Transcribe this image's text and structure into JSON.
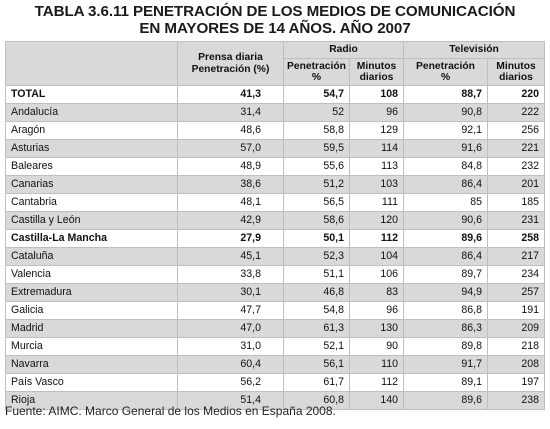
{
  "title": {
    "line1": "TABLA 3.6.11 PENETRACIÓN DE LOS MEDIOS DE COMUNICACIÓN",
    "line2": "EN MAYORES DE 14 AÑOS. AÑO 2007"
  },
  "headers": {
    "prensa": "Prensa diaria",
    "prensa_sub": "Penetración (%)",
    "radio": "Radio",
    "television": "Televisión",
    "penetracion": "Penetración",
    "pct": "%",
    "minutos": "Minutos",
    "diarios": "diarios"
  },
  "rows": [
    {
      "region": "TOTAL",
      "prensa": "41,3",
      "radio_pen": "54,7",
      "radio_min": "108",
      "tv_pen": "88,7",
      "tv_min": "220",
      "bold": true
    },
    {
      "region": "Andalucía",
      "prensa": "31,4",
      "radio_pen": "52",
      "radio_min": "96",
      "tv_pen": "90,8",
      "tv_min": "222",
      "bold": false
    },
    {
      "region": "Aragón",
      "prensa": "48,6",
      "radio_pen": "58,8",
      "radio_min": "129",
      "tv_pen": "92,1",
      "tv_min": "256",
      "bold": false
    },
    {
      "region": "Asturias",
      "prensa": "57,0",
      "radio_pen": "59,5",
      "radio_min": "114",
      "tv_pen": "91,6",
      "tv_min": "221",
      "bold": false
    },
    {
      "region": "Baleares",
      "prensa": "48,9",
      "radio_pen": "55,6",
      "radio_min": "113",
      "tv_pen": "84,8",
      "tv_min": "232",
      "bold": false
    },
    {
      "region": "Canarias",
      "prensa": "38,6",
      "radio_pen": "51,2",
      "radio_min": "103",
      "tv_pen": "86,4",
      "tv_min": "201",
      "bold": false
    },
    {
      "region": "Cantabria",
      "prensa": "48,1",
      "radio_pen": "56,5",
      "radio_min": "111",
      "tv_pen": "85",
      "tv_min": "185",
      "bold": false
    },
    {
      "region": "Castilla y León",
      "prensa": "42,9",
      "radio_pen": "58,6",
      "radio_min": "120",
      "tv_pen": "90,6",
      "tv_min": "231",
      "bold": false
    },
    {
      "region": "Castilla-La Mancha",
      "prensa": "27,9",
      "radio_pen": "50,1",
      "radio_min": "112",
      "tv_pen": "89,6",
      "tv_min": "258",
      "bold": true
    },
    {
      "region": "Cataluña",
      "prensa": "45,1",
      "radio_pen": "52,3",
      "radio_min": "104",
      "tv_pen": "86,4",
      "tv_min": "217",
      "bold": false
    },
    {
      "region": "Valencia",
      "prensa": "33,8",
      "radio_pen": "51,1",
      "radio_min": "106",
      "tv_pen": "89,7",
      "tv_min": "234",
      "bold": false
    },
    {
      "region": "Extremadura",
      "prensa": "30,1",
      "radio_pen": "46,8",
      "radio_min": "83",
      "tv_pen": "94,9",
      "tv_min": "257",
      "bold": false
    },
    {
      "region": "Galicia",
      "prensa": "47,7",
      "radio_pen": "54,8",
      "radio_min": "96",
      "tv_pen": "86,8",
      "tv_min": "191",
      "bold": false
    },
    {
      "region": "Madrid",
      "prensa": "47,0",
      "radio_pen": "61,3",
      "radio_min": "130",
      "tv_pen": "86,3",
      "tv_min": "209",
      "bold": false
    },
    {
      "region": "Murcia",
      "prensa": "31,0",
      "radio_pen": "52,1",
      "radio_min": "90",
      "tv_pen": "89,8",
      "tv_min": "218",
      "bold": false
    },
    {
      "region": "Navarra",
      "prensa": "60,4",
      "radio_pen": "56,1",
      "radio_min": "110",
      "tv_pen": "91,7",
      "tv_min": "208",
      "bold": false
    },
    {
      "region": "País Vasco",
      "prensa": "56,2",
      "radio_pen": "61,7",
      "radio_min": "112",
      "tv_pen": "89,1",
      "tv_min": "197",
      "bold": false
    },
    {
      "region": "Rioja",
      "prensa": "51,4",
      "radio_pen": "60,8",
      "radio_min": "140",
      "tv_pen": "89,6",
      "tv_min": "238",
      "bold": false
    }
  ],
  "source": "Fuente: AIMC. Marco General de los Medios en España 2008."
}
